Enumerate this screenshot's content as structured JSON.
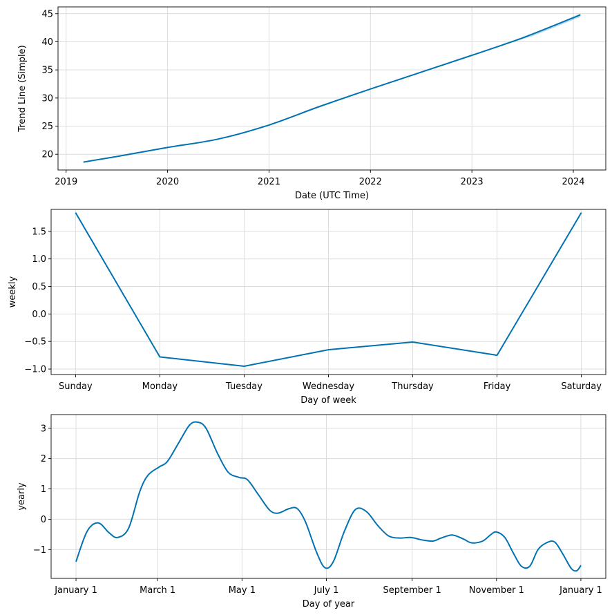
{
  "chart_data": [
    {
      "type": "line",
      "title": "",
      "xlabel": "Date (UTC Time)",
      "ylabel": "Trend Line (Simple)",
      "grid": true,
      "line_color": "#0072B2",
      "band_color": "#0072B2",
      "xlim": [
        2018.92,
        2024.32
      ],
      "ylim": [
        17.2,
        46.2
      ],
      "x_ticks": [
        2019,
        2020,
        2021,
        2022,
        2023,
        2024
      ],
      "x_tick_labels": [
        "2019",
        "2020",
        "2021",
        "2022",
        "2023",
        "2024"
      ],
      "y_ticks": [
        20,
        25,
        30,
        35,
        40,
        45
      ],
      "y_tick_labels": [
        "20",
        "25",
        "30",
        "35",
        "40",
        "45"
      ],
      "series": [
        {
          "name": "trend",
          "x": [
            2019.17,
            2019.5,
            2020.0,
            2020.5,
            2021.0,
            2021.5,
            2022.0,
            2022.5,
            2023.0,
            2023.5,
            2024.07
          ],
          "values": [
            18.6,
            19.6,
            21.2,
            22.7,
            25.2,
            28.5,
            31.6,
            34.6,
            37.6,
            40.7,
            44.8
          ]
        }
      ],
      "uncertainty_band": {
        "x": [
          2023.3,
          2023.6,
          2024.07
        ],
        "upper": [
          39.6,
          41.4,
          45.0
        ],
        "lower": [
          39.4,
          41.0,
          44.4
        ]
      }
    },
    {
      "type": "line",
      "title": "",
      "xlabel": "Day of week",
      "ylabel": "weekly",
      "grid": true,
      "line_color": "#0072B2",
      "xlim": [
        -0.29,
        6.29
      ],
      "ylim": [
        -1.1,
        1.9
      ],
      "x_ticks": [
        0,
        1,
        2,
        3,
        4,
        5,
        6
      ],
      "x_tick_labels": [
        "Sunday",
        "Monday",
        "Tuesday",
        "Wednesday",
        "Thursday",
        "Friday",
        "Saturday"
      ],
      "y_ticks": [
        -1.0,
        -0.5,
        0.0,
        0.5,
        1.0,
        1.5
      ],
      "y_tick_labels": [
        "−1.0",
        "−0.5",
        "0.0",
        "0.5",
        "1.0",
        "1.5"
      ],
      "series": [
        {
          "name": "weekly",
          "x": [
            0,
            1,
            2,
            3,
            4,
            5,
            6
          ],
          "values": [
            1.84,
            -0.78,
            -0.95,
            -0.65,
            -0.51,
            -0.75,
            1.84
          ]
        }
      ]
    },
    {
      "type": "line",
      "title": "",
      "xlabel": "Day of year",
      "ylabel": "yearly",
      "grid": true,
      "line_color": "#0072B2",
      "xlim": [
        -18,
        383
      ],
      "ylim": [
        -1.95,
        3.45
      ],
      "x_ticks": [
        0,
        59,
        120,
        181,
        243,
        304,
        365
      ],
      "x_tick_labels": [
        "January 1",
        "March 1",
        "May 1",
        "July 1",
        "September 1",
        "November 1",
        "January 1"
      ],
      "y_ticks": [
        -1,
        0,
        1,
        2,
        3
      ],
      "y_tick_labels": [
        "−1",
        "0",
        "1",
        "2",
        "3"
      ],
      "series": [
        {
          "name": "yearly",
          "x": [
            0,
            8,
            16,
            24,
            30,
            38,
            46,
            52,
            60,
            66,
            74,
            82,
            88,
            94,
            102,
            110,
            118,
            124,
            132,
            140,
            146,
            154,
            160,
            166,
            174,
            180,
            186,
            194,
            202,
            210,
            218,
            226,
            234,
            242,
            250,
            258,
            264,
            272,
            280,
            286,
            294,
            300,
            304,
            310,
            316,
            322,
            328,
            334,
            340,
            346,
            352,
            358,
            362,
            365
          ],
          "values": [
            -1.4,
            -0.4,
            -0.12,
            -0.45,
            -0.6,
            -0.3,
            0.9,
            1.45,
            1.72,
            1.9,
            2.5,
            3.1,
            3.2,
            3.0,
            2.2,
            1.55,
            1.38,
            1.3,
            0.8,
            0.3,
            0.2,
            0.35,
            0.35,
            -0.1,
            -1.1,
            -1.6,
            -1.4,
            -0.4,
            0.32,
            0.25,
            -0.2,
            -0.55,
            -0.62,
            -0.6,
            -0.68,
            -0.72,
            -0.62,
            -0.52,
            -0.65,
            -0.78,
            -0.72,
            -0.5,
            -0.42,
            -0.6,
            -1.1,
            -1.55,
            -1.55,
            -1.0,
            -0.78,
            -0.75,
            -1.15,
            -1.62,
            -1.7,
            -1.52
          ]
        }
      ]
    }
  ]
}
